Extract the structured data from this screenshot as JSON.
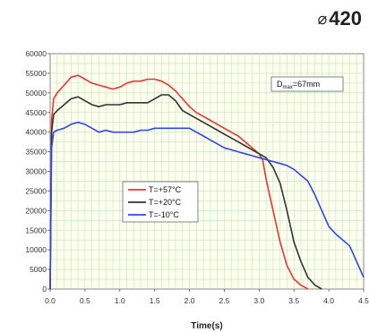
{
  "badge": {
    "symbol": "⌀",
    "value": "420"
  },
  "chart_data": {
    "type": "line",
    "title": "",
    "xlabel": "Time(s)",
    "ylabel": "",
    "xlim": [
      0,
      4.5
    ],
    "ylim": [
      0,
      60000
    ],
    "xticks": [
      "0.0",
      "0.5",
      "1.0",
      "1.5",
      "2.0",
      "2.5",
      "3.0",
      "3.5",
      "4.0",
      "4.5"
    ],
    "yticks": [
      "0",
      "5000",
      "10000",
      "15000",
      "20000",
      "25000",
      "30000",
      "35000",
      "40000",
      "45000",
      "50000",
      "55000",
      "60000"
    ],
    "grid": true,
    "legend_position": "center-left",
    "annotation": {
      "main": "D",
      "sub": "max",
      "rest": "=67mm"
    },
    "series": [
      {
        "name": "T=+57°C",
        "color": "#ee3333",
        "points": [
          [
            0,
            0
          ],
          [
            0.02,
            43000
          ],
          [
            0.05,
            48500
          ],
          [
            0.1,
            50000
          ],
          [
            0.2,
            52000
          ],
          [
            0.3,
            54000
          ],
          [
            0.4,
            54500
          ],
          [
            0.5,
            53500
          ],
          [
            0.6,
            52500
          ],
          [
            0.7,
            52000
          ],
          [
            0.8,
            51500
          ],
          [
            0.9,
            51000
          ],
          [
            1.0,
            51500
          ],
          [
            1.1,
            52500
          ],
          [
            1.2,
            53000
          ],
          [
            1.3,
            53000
          ],
          [
            1.4,
            53500
          ],
          [
            1.5,
            53500
          ],
          [
            1.6,
            53000
          ],
          [
            1.7,
            52000
          ],
          [
            1.8,
            50500
          ],
          [
            1.9,
            48500
          ],
          [
            2.0,
            46500
          ],
          [
            2.1,
            45000
          ],
          [
            2.2,
            44000
          ],
          [
            2.3,
            43000
          ],
          [
            2.4,
            42000
          ],
          [
            2.5,
            41000
          ],
          [
            2.6,
            40000
          ],
          [
            2.7,
            39000
          ],
          [
            2.8,
            37500
          ],
          [
            2.9,
            36000
          ],
          [
            3.0,
            34500
          ],
          [
            3.05,
            33000
          ],
          [
            3.1,
            28000
          ],
          [
            3.2,
            20000
          ],
          [
            3.3,
            12000
          ],
          [
            3.4,
            6000
          ],
          [
            3.5,
            2500
          ],
          [
            3.6,
            1000
          ],
          [
            3.7,
            0
          ]
        ]
      },
      {
        "name": "T=+20°C",
        "color": "#333333",
        "points": [
          [
            0,
            0
          ],
          [
            0.02,
            40000
          ],
          [
            0.05,
            44500
          ],
          [
            0.1,
            45500
          ],
          [
            0.2,
            47000
          ],
          [
            0.3,
            48500
          ],
          [
            0.4,
            49000
          ],
          [
            0.5,
            48000
          ],
          [
            0.6,
            47000
          ],
          [
            0.7,
            46500
          ],
          [
            0.8,
            47000
          ],
          [
            0.9,
            47000
          ],
          [
            1.0,
            47000
          ],
          [
            1.1,
            47500
          ],
          [
            1.2,
            47500
          ],
          [
            1.3,
            47500
          ],
          [
            1.4,
            47500
          ],
          [
            1.5,
            48500
          ],
          [
            1.6,
            49500
          ],
          [
            1.7,
            49500
          ],
          [
            1.8,
            48000
          ],
          [
            1.9,
            45500
          ],
          [
            2.0,
            44500
          ],
          [
            2.1,
            43500
          ],
          [
            2.2,
            42500
          ],
          [
            2.3,
            41500
          ],
          [
            2.4,
            40500
          ],
          [
            2.5,
            39500
          ],
          [
            2.6,
            38500
          ],
          [
            2.7,
            37500
          ],
          [
            2.8,
            36500
          ],
          [
            2.9,
            35500
          ],
          [
            3.0,
            34500
          ],
          [
            3.1,
            33500
          ],
          [
            3.2,
            31000
          ],
          [
            3.3,
            27000
          ],
          [
            3.4,
            20000
          ],
          [
            3.5,
            12000
          ],
          [
            3.6,
            7000
          ],
          [
            3.7,
            3000
          ],
          [
            3.8,
            1000
          ],
          [
            3.9,
            0
          ]
        ]
      },
      {
        "name": "T=-10°C",
        "color": "#3344ee",
        "points": [
          [
            0,
            0
          ],
          [
            0.02,
            36000
          ],
          [
            0.05,
            40000
          ],
          [
            0.1,
            40500
          ],
          [
            0.2,
            41000
          ],
          [
            0.3,
            42000
          ],
          [
            0.4,
            42500
          ],
          [
            0.5,
            42000
          ],
          [
            0.6,
            41000
          ],
          [
            0.7,
            40000
          ],
          [
            0.8,
            40500
          ],
          [
            0.9,
            40000
          ],
          [
            1.0,
            40000
          ],
          [
            1.1,
            40000
          ],
          [
            1.2,
            40000
          ],
          [
            1.3,
            40500
          ],
          [
            1.4,
            40500
          ],
          [
            1.5,
            41000
          ],
          [
            1.6,
            41000
          ],
          [
            1.7,
            41000
          ],
          [
            1.8,
            41000
          ],
          [
            1.9,
            41000
          ],
          [
            2.0,
            41000
          ],
          [
            2.1,
            40000
          ],
          [
            2.2,
            39000
          ],
          [
            2.3,
            38000
          ],
          [
            2.4,
            37000
          ],
          [
            2.5,
            36000
          ],
          [
            2.6,
            35500
          ],
          [
            2.7,
            35000
          ],
          [
            2.8,
            34500
          ],
          [
            2.9,
            34000
          ],
          [
            3.0,
            33500
          ],
          [
            3.1,
            33000
          ],
          [
            3.2,
            32500
          ],
          [
            3.3,
            32000
          ],
          [
            3.4,
            31500
          ],
          [
            3.5,
            30500
          ],
          [
            3.6,
            29000
          ],
          [
            3.7,
            27500
          ],
          [
            3.8,
            24000
          ],
          [
            3.9,
            20000
          ],
          [
            4.0,
            16000
          ],
          [
            4.1,
            14000
          ],
          [
            4.2,
            12500
          ],
          [
            4.3,
            11000
          ],
          [
            4.4,
            7000
          ],
          [
            4.5,
            3000
          ]
        ]
      }
    ]
  }
}
